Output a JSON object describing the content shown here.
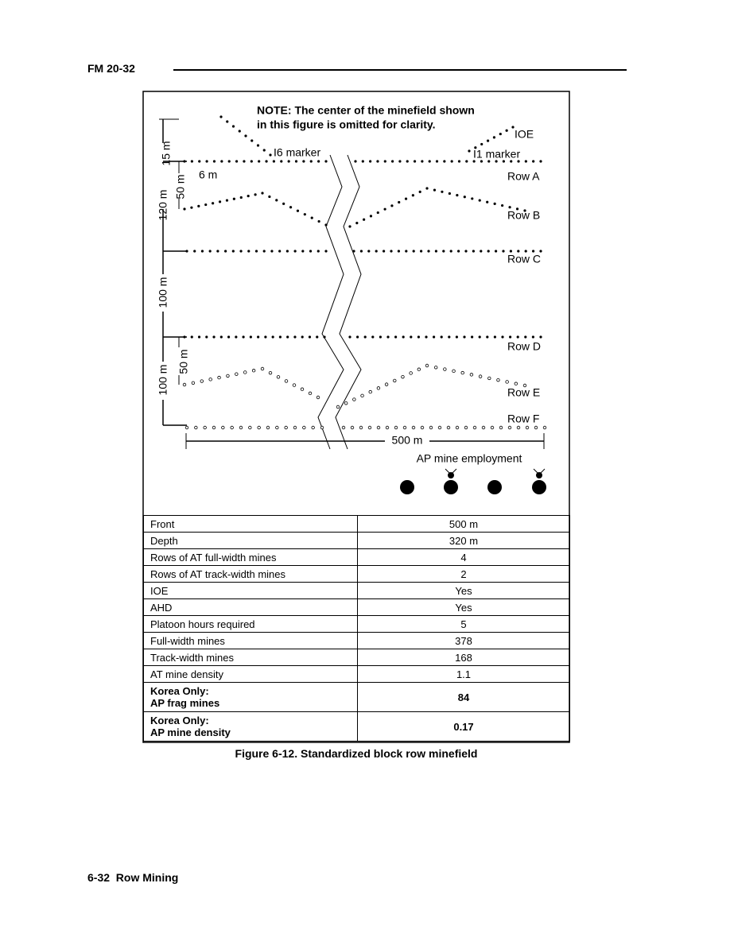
{
  "header": {
    "title": "FM 20-32"
  },
  "figure": {
    "note": [
      "NOTE: The center of the minefield shown",
      "in this figure is omitted for clarity."
    ],
    "labels": {
      "ioe": "IOE",
      "i6": "I6 marker",
      "i1": "I1 marker",
      "rows": [
        "Row A",
        "Row B",
        "Row C",
        "Row D",
        "Row E",
        "Row F"
      ],
      "dim_15": "15 m",
      "dim_6": "6 m",
      "dim_50_top": "50 m",
      "dim_120": "120 m",
      "dim_100_top": "100 m",
      "dim_50_bottom": "50 m",
      "dim_100_bottom": "100 m",
      "dim_500": "500 m",
      "ap": "AP mine employment"
    }
  },
  "table": {
    "rows": [
      [
        "Front",
        "500 m"
      ],
      [
        "Depth",
        "320 m"
      ],
      [
        "Rows of AT full-width mines",
        4
      ],
      [
        "Rows of AT track-width mines",
        2
      ],
      [
        "IOE",
        "Yes"
      ],
      [
        "AHD",
        "Yes"
      ],
      [
        "Platoon hours required",
        5
      ],
      [
        "Full-width mines",
        378
      ],
      [
        "Track-width mines",
        168
      ],
      [
        "AT mine density",
        1.1
      ],
      [
        [
          "Korea Only:",
          "AP frag mines"
        ],
        84
      ],
      [
        [
          "Korea Only:",
          "AP mine density"
        ],
        0.17
      ]
    ]
  },
  "caption": "Figure 6-12. Standardized block row minefield",
  "footer": "6-32  Row Mining"
}
